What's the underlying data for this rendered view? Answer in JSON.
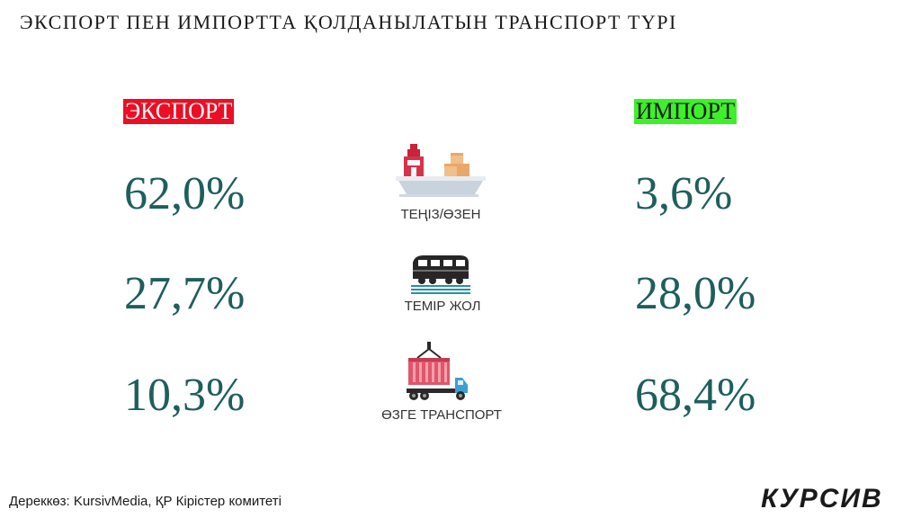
{
  "title": "ЭКСПОРТ ПЕН ИМПОРТТА ҚОЛДАНЫЛАТЫН ТРАНСПОРТ ТҮРІ",
  "chart_data": {
    "type": "table",
    "title": "ЭКСПОРТ ПЕН ИМПОРТТА ҚОЛДАНЫЛАТЫН ТРАНСПОРТ ТҮРІ",
    "columns": [
      "ЭКСПОРТ",
      "ИМПОРТ"
    ],
    "categories": [
      "ТЕҢІЗ/ӨЗЕН",
      "ТЕМІР ЖОЛ",
      "ӨЗГЕ ТРАНСПОРТ"
    ],
    "series": [
      {
        "name": "ЭКСПОРТ",
        "values": [
          62.0,
          27.7,
          10.3
        ],
        "labels": [
          "62,0%",
          "27,7%",
          "10,3%"
        ],
        "color": "#ec0e24"
      },
      {
        "name": "ИМПОРТ",
        "values": [
          3.6,
          28.0,
          68.4
        ],
        "labels": [
          "3,6%",
          "28,0%",
          "68,4%"
        ],
        "color": "#3df02a"
      }
    ],
    "unit": "%",
    "value_color": "#1d5f5d"
  },
  "icons": [
    "cargo-ship-icon",
    "train-icon",
    "container-truck-icon"
  ],
  "footer": {
    "source": "Дереккөз: KursivMedia, ҚР Кірістер комитеті",
    "brand": "КУРСИВ"
  }
}
